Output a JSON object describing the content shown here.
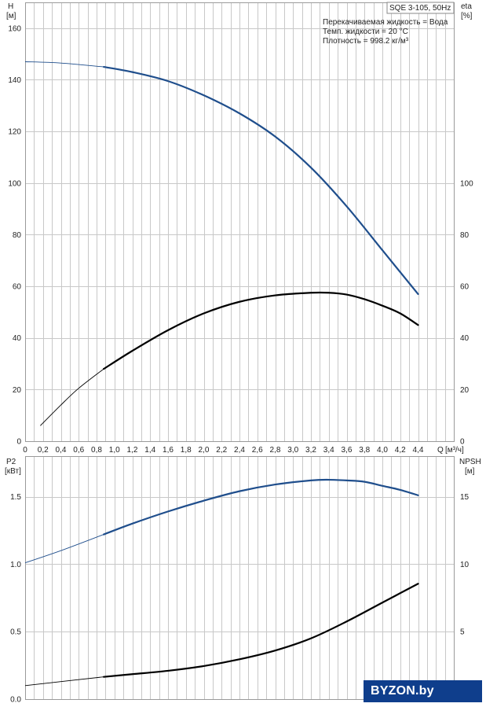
{
  "title": "SQE 3-105, 50Hz",
  "info": [
    "Перекачиваемая жидкость = Вода",
    "Темп. жидкости = 20 °C",
    "Плотность = 998.2 кг/м³"
  ],
  "colors": {
    "blue": "#1f4e8c",
    "black": "#000000",
    "grid": "#c8c8c8",
    "logo_bg": "#0f3e8c"
  },
  "logo": {
    "text": "BYZON.by"
  },
  "chart_data": [
    {
      "type": "line",
      "xlabel": "Q [м³/ч]",
      "x_unit": "[м³/ч]",
      "x_axis_label": "Q",
      "xlim": [
        0,
        4.8
      ],
      "x_ticks": [
        "0",
        "0,2",
        "0,4",
        "0,6",
        "0,8",
        "1,0",
        "1,2",
        "1,4",
        "1,6",
        "1,8",
        "2,0",
        "2,2",
        "2,4",
        "2,6",
        "2,8",
        "3,0",
        "3,2",
        "3,4",
        "3,6",
        "3,8",
        "4,0",
        "4,2",
        "4,4"
      ],
      "left_axis": {
        "label": "H",
        "unit": "[м]",
        "ylim": [
          0,
          170
        ],
        "ticks": [
          "0",
          "20",
          "40",
          "60",
          "80",
          "100",
          "120",
          "140",
          "160"
        ]
      },
      "right_axis": {
        "label": "eta",
        "unit": "[%]",
        "ylim": [
          0,
          170
        ],
        "ticks": [
          "0",
          "20",
          "40",
          "60",
          "80",
          "100"
        ]
      },
      "grid": true,
      "series": [
        {
          "color": "#1f4e8c",
          "axis": "left",
          "thin_until": 0.88,
          "x": [
            0,
            0.4,
            0.88,
            1.2,
            1.6,
            2.0,
            2.4,
            2.8,
            3.2,
            3.6,
            4.0,
            4.4
          ],
          "y": [
            147,
            146.5,
            145,
            143,
            139.5,
            134,
            127,
            118,
            106,
            91,
            74,
            57
          ]
        },
        {
          "color": "#000000",
          "axis": "right",
          "thin_until": 0.88,
          "x": [
            0.17,
            0.4,
            0.6,
            0.88,
            1.2,
            1.6,
            2.0,
            2.4,
            2.8,
            3.2,
            3.4,
            3.6,
            3.8,
            4.0,
            4.2,
            4.4
          ],
          "y": [
            6,
            14,
            20.5,
            28,
            35,
            43,
            49.5,
            54,
            56.5,
            57.5,
            57.5,
            56.8,
            55,
            52.5,
            49.5,
            45
          ]
        }
      ]
    },
    {
      "type": "line",
      "xlim": [
        0,
        4.8
      ],
      "left_axis": {
        "label": "P2",
        "unit": "[кВт]",
        "ylim": [
          0,
          1.8
        ],
        "ticks": [
          "0.0",
          "0.5",
          "1.0",
          "1.5"
        ]
      },
      "right_axis": {
        "label": "NPSH",
        "unit": "[м]",
        "ylim": [
          0,
          18
        ],
        "ticks": [
          "0",
          "5",
          "10",
          "15"
        ]
      },
      "grid": true,
      "series": [
        {
          "color": "#1f4e8c",
          "axis": "left",
          "thin_until": 0.88,
          "x": [
            0,
            0.4,
            0.88,
            1.2,
            1.6,
            2.0,
            2.4,
            2.8,
            3.2,
            3.4,
            3.6,
            3.8,
            4.0,
            4.2,
            4.4
          ],
          "y": [
            1.01,
            1.1,
            1.22,
            1.3,
            1.39,
            1.47,
            1.54,
            1.59,
            1.62,
            1.625,
            1.62,
            1.61,
            1.58,
            1.55,
            1.51
          ]
        },
        {
          "color": "#000000",
          "axis": "right",
          "thin_until": 0.88,
          "x": [
            0,
            0.4,
            0.88,
            1.2,
            1.6,
            2.0,
            2.4,
            2.8,
            3.2,
            3.6,
            4.0,
            4.4
          ],
          "y": [
            1,
            1.3,
            1.65,
            1.85,
            2.1,
            2.45,
            2.95,
            3.6,
            4.5,
            5.75,
            7.15,
            8.55
          ]
        }
      ]
    }
  ]
}
